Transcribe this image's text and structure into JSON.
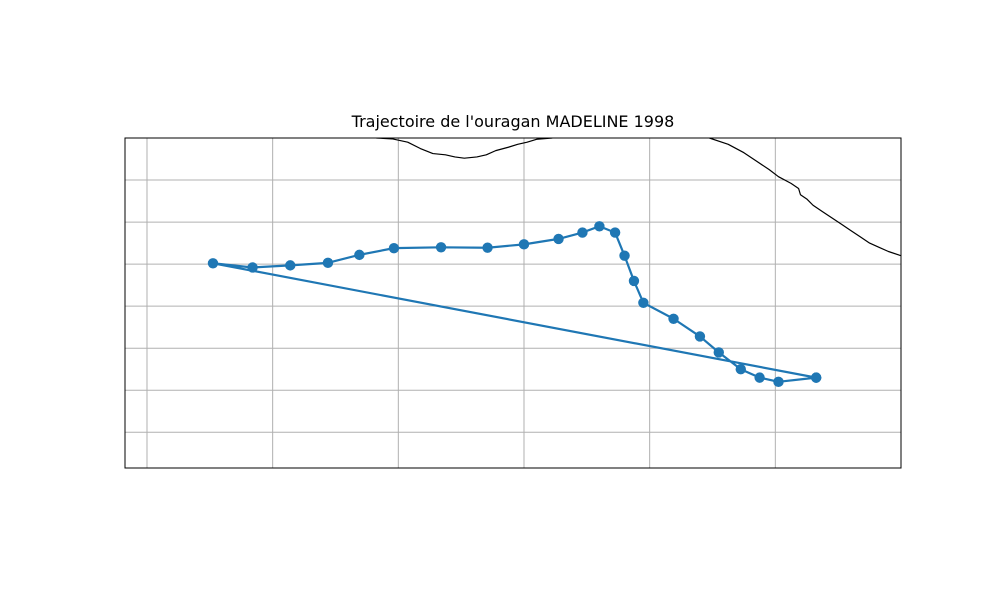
{
  "title": "Trajectoire de l'ouragan MADELINE 1998",
  "colors": {
    "track": "#1f77b4",
    "coastline": "#000000",
    "gridline": "#b0b0b0",
    "frame": "#000000",
    "background": "#ffffff"
  },
  "map": {
    "projection": "PlateCarree",
    "extent": {
      "lon_min": -116.7,
      "lon_max": -104.35,
      "lat_min": 12.85,
      "lat_max": 20.7
    },
    "gridlines": true,
    "gridline_lons": [
      -116.35,
      -114.35,
      -112.35,
      -110.35,
      -108.35,
      -106.35
    ],
    "gridline_lats": [
      13.7,
      14.7,
      15.7,
      16.7,
      17.7,
      18.7,
      19.7
    ],
    "coastline": [
      [
        [
          -112.7,
          20.7
        ],
        [
          -112.45,
          20.68
        ],
        [
          -112.2,
          20.6
        ],
        [
          -112.0,
          20.45
        ],
        [
          -111.8,
          20.33
        ],
        [
          -111.6,
          20.3
        ],
        [
          -111.45,
          20.25
        ],
        [
          -111.3,
          20.22
        ],
        [
          -111.1,
          20.25
        ],
        [
          -110.95,
          20.3
        ],
        [
          -110.8,
          20.4
        ],
        [
          -110.6,
          20.48
        ],
        [
          -110.45,
          20.55
        ],
        [
          -110.3,
          20.6
        ],
        [
          -110.15,
          20.67
        ],
        [
          -109.9,
          20.7
        ]
      ],
      [
        [
          -107.4,
          20.7
        ],
        [
          -107.1,
          20.55
        ],
        [
          -106.85,
          20.35
        ],
        [
          -106.65,
          20.15
        ],
        [
          -106.45,
          19.95
        ],
        [
          -106.3,
          19.78
        ],
        [
          -106.1,
          19.62
        ],
        [
          -105.98,
          19.5
        ],
        [
          -105.95,
          19.35
        ],
        [
          -105.85,
          19.25
        ],
        [
          -105.75,
          19.1
        ],
        [
          -105.6,
          18.95
        ],
        [
          -105.45,
          18.8
        ],
        [
          -105.3,
          18.65
        ],
        [
          -105.15,
          18.5
        ],
        [
          -105.0,
          18.35
        ],
        [
          -104.85,
          18.2
        ],
        [
          -104.7,
          18.1
        ],
        [
          -104.55,
          18.0
        ],
        [
          -104.35,
          17.9
        ]
      ]
    ]
  },
  "track": {
    "name": "MADELINE 1998",
    "points": [
      [
        -105.7,
        15.0
      ],
      [
        -106.3,
        14.9
      ],
      [
        -106.6,
        15.0
      ],
      [
        -106.9,
        15.2
      ],
      [
        -107.25,
        15.6
      ],
      [
        -107.55,
        15.98
      ],
      [
        -107.97,
        16.4
      ],
      [
        -108.45,
        16.78
      ],
      [
        -108.6,
        17.3
      ],
      [
        -108.75,
        17.9
      ],
      [
        -108.9,
        18.45
      ],
      [
        -109.15,
        18.6
      ],
      [
        -109.42,
        18.45
      ],
      [
        -109.8,
        18.3
      ],
      [
        -110.35,
        18.17
      ],
      [
        -110.93,
        18.09
      ],
      [
        -111.67,
        18.1
      ],
      [
        -112.42,
        18.08
      ],
      [
        -112.97,
        17.92
      ],
      [
        -113.47,
        17.73
      ],
      [
        -114.07,
        17.67
      ],
      [
        -114.67,
        17.62
      ],
      [
        -115.3,
        17.72
      ],
      [
        -105.7,
        15.0
      ]
    ]
  }
}
